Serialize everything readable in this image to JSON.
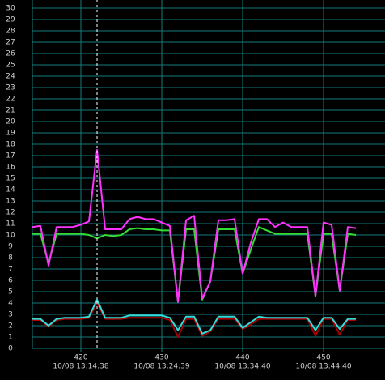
{
  "chart_data": {
    "type": "line",
    "x": [
      414,
      415,
      416,
      417,
      418,
      419,
      420,
      421,
      422,
      423,
      424,
      425,
      426,
      427,
      428,
      429,
      430,
      431,
      432,
      433,
      434,
      435,
      436,
      437,
      438,
      439,
      440,
      441,
      442,
      443,
      444,
      445,
      446,
      447,
      448,
      449,
      450,
      451,
      452,
      453,
      454
    ],
    "series": [
      {
        "color": "#ff33ff",
        "values": [
          10.7,
          10.8,
          7.3,
          10.7,
          10.7,
          10.7,
          10.9,
          11.2,
          17.5,
          10.5,
          10.5,
          10.5,
          11.4,
          11.6,
          11.4,
          11.4,
          11.1,
          10.8,
          4.1,
          11.3,
          11.7,
          4.4,
          5.9,
          11.3,
          11.3,
          11.4,
          6.6,
          9.3,
          11.4,
          11.4,
          10.7,
          11.1,
          10.7,
          10.7,
          10.7,
          4.6,
          11.1,
          10.9,
          5.1,
          10.7,
          10.6
        ]
      },
      {
        "color": "#33dd33",
        "values": [
          10.1,
          10.1,
          7.5,
          10.1,
          10.1,
          10.1,
          10.1,
          10.0,
          9.7,
          10.0,
          9.9,
          10.0,
          10.5,
          10.6,
          10.5,
          10.5,
          10.4,
          10.4,
          4.1,
          10.5,
          10.5,
          4.3,
          5.9,
          10.5,
          10.5,
          10.5,
          6.6,
          8.7,
          10.7,
          10.4,
          10.1,
          10.1,
          10.1,
          10.1,
          10.1,
          4.6,
          10.1,
          10.1,
          5.1,
          10.1,
          10.0
        ]
      },
      {
        "color": "#33dddd",
        "values": [
          2.6,
          2.6,
          2.0,
          2.6,
          2.7,
          2.7,
          2.7,
          2.8,
          4.3,
          2.7,
          2.7,
          2.7,
          2.9,
          2.9,
          2.9,
          2.9,
          2.9,
          2.7,
          1.6,
          2.8,
          2.8,
          1.3,
          1.6,
          2.8,
          2.8,
          2.8,
          1.8,
          2.3,
          2.8,
          2.7,
          2.7,
          2.7,
          2.7,
          2.7,
          2.7,
          1.6,
          2.7,
          2.7,
          1.7,
          2.6,
          2.6
        ]
      },
      {
        "color": "#aa0000",
        "values": [
          2.5,
          2.5,
          1.9,
          2.5,
          2.6,
          2.6,
          2.6,
          2.7,
          4.0,
          2.6,
          2.6,
          2.6,
          2.7,
          2.7,
          2.7,
          2.7,
          2.7,
          2.5,
          1.0,
          2.6,
          2.6,
          1.1,
          1.5,
          2.6,
          2.6,
          2.6,
          1.7,
          2.1,
          2.6,
          2.6,
          2.6,
          2.6,
          2.6,
          2.6,
          2.6,
          1.1,
          2.6,
          2.6,
          1.2,
          2.5,
          2.5
        ]
      }
    ],
    "xlim": [
      414,
      457
    ],
    "xticks": [
      420,
      430,
      440,
      450
    ],
    "xtick_times": [
      "10/08 13:14:38",
      "10/08 13:24:39",
      "10/08 13:34:40",
      "10/08 13:44:40"
    ],
    "ylim": [
      0,
      30
    ],
    "yticks": [
      0,
      1,
      2,
      3,
      4,
      5,
      6,
      7,
      8,
      9,
      10,
      11,
      12,
      13,
      14,
      15,
      16,
      17,
      18,
      19,
      20,
      21,
      22,
      23,
      24,
      25,
      26,
      27,
      28,
      29,
      30
    ],
    "cursor_x": 422,
    "grid": true
  }
}
